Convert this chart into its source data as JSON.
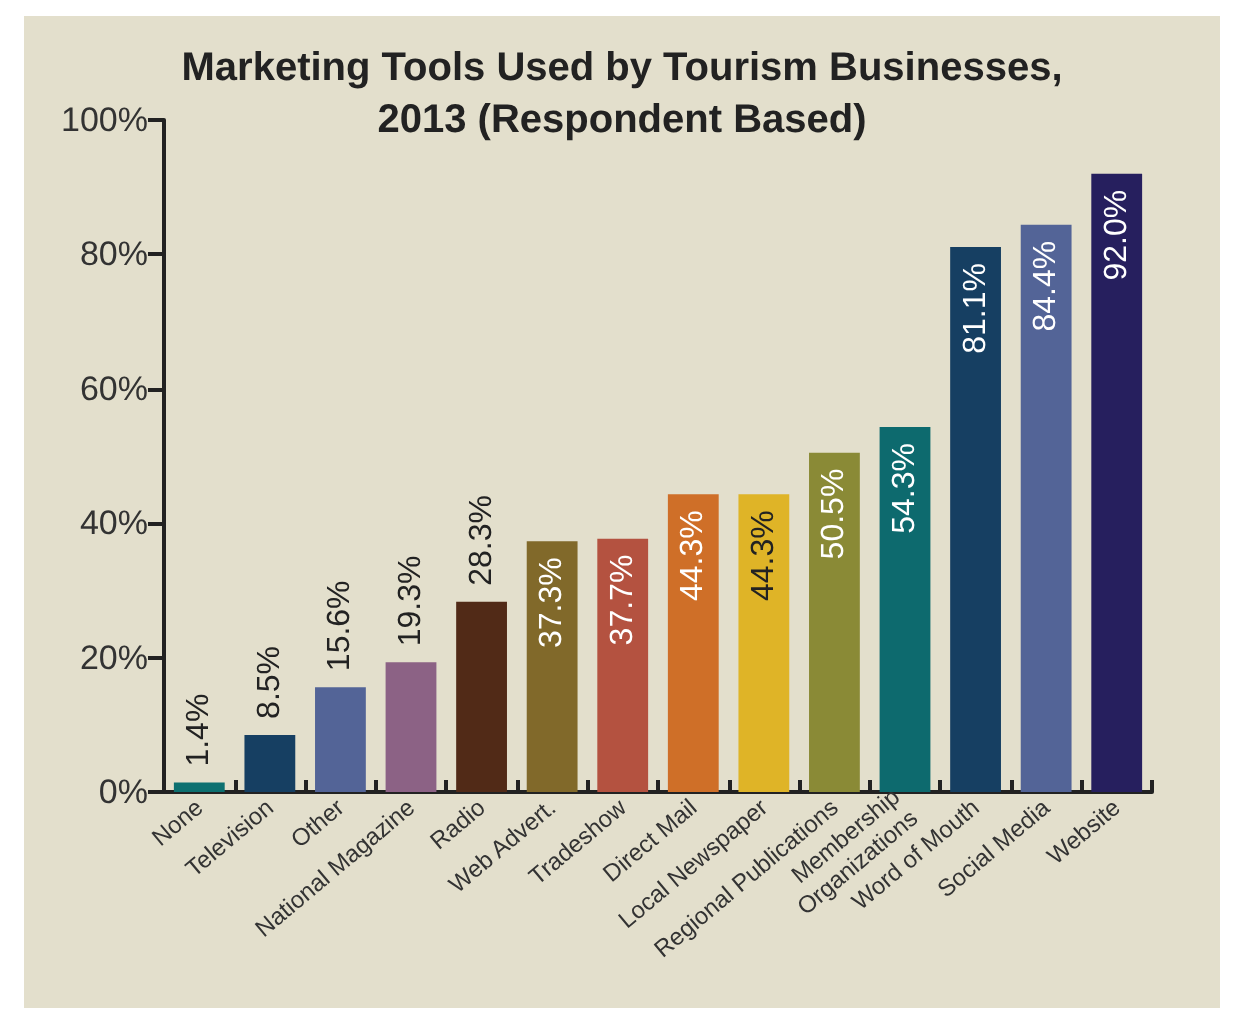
{
  "chart_data": {
    "type": "bar",
    "title": "Marketing Tools Used by Tourism Businesses,\n2013 (Respondent Based)",
    "categories": [
      "None",
      "Television",
      "Other",
      "National Magazine",
      "Radio",
      "Web Advert.",
      "Tradeshow",
      "Direct Mail",
      "Local Newspaper",
      "Regional Publications",
      "Membership\nOrganizations",
      "Word of Mouth",
      "Social Media",
      "Website"
    ],
    "values": [
      1.4,
      8.5,
      15.6,
      19.3,
      28.3,
      37.3,
      37.7,
      44.3,
      44.3,
      50.5,
      54.3,
      81.1,
      84.4,
      92.0
    ],
    "value_labels": [
      "1.4%",
      "8.5%",
      "15.6%",
      "19.3%",
      "28.3%",
      "37.3%",
      "37.7%",
      "44.3%",
      "44.3%",
      "50.5%",
      "54.3%",
      "81.1%",
      "84.4%",
      "92.0%"
    ],
    "colors": [
      "#0d7070",
      "#163f62",
      "#536497",
      "#8c6285",
      "#512a17",
      "#81692a",
      "#b45240",
      "#cf6f28",
      "#dfb427",
      "#8a8a36",
      "#0d6a6e",
      "#163f62",
      "#536497",
      "#261f5e"
    ],
    "ylim": [
      0,
      100
    ],
    "yticks": [
      {
        "value": 0,
        "label": "0%"
      },
      {
        "value": 20,
        "label": "20%"
      },
      {
        "value": 40,
        "label": "40%"
      },
      {
        "value": 60,
        "label": "60%"
      },
      {
        "value": 80,
        "label": "80%"
      },
      {
        "value": 100,
        "label": "100%"
      }
    ],
    "grid": false
  }
}
